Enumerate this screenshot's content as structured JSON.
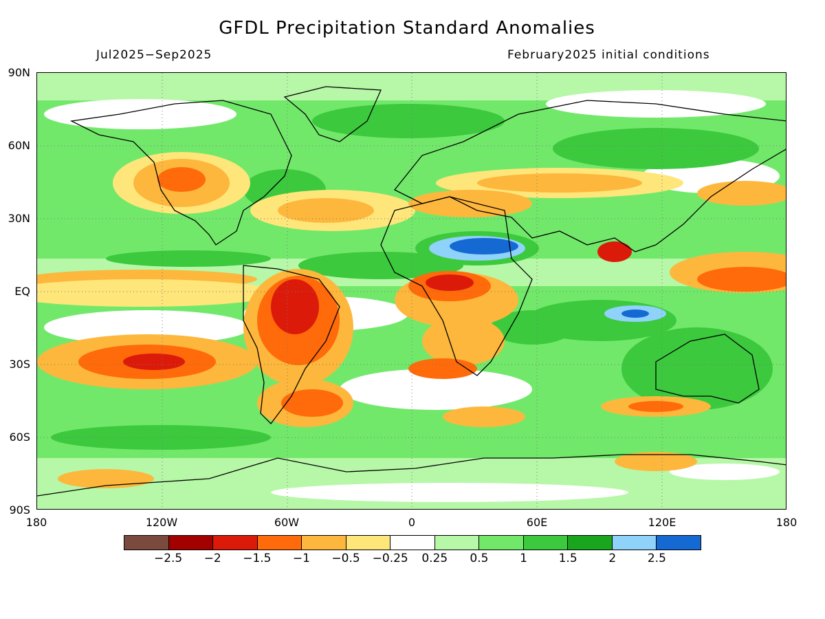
{
  "title": "GFDL Precipitation Standard Anomalies",
  "period": "Jul2025−Sep2025",
  "init_conditions": "February2025 initial conditions",
  "lat_labels": [
    "90N",
    "60N",
    "30N",
    "EQ",
    "30S",
    "60S",
    "90S"
  ],
  "lon_labels": [
    "180",
    "120W",
    "60W",
    "0",
    "60E",
    "120E",
    "180"
  ],
  "colorbar": {
    "colors": [
      "#7b4a3f",
      "#a30000",
      "#dc1a0a",
      "#ff6a0a",
      "#fdb73c",
      "#fee67a",
      "#ffffff",
      "#b7f7a8",
      "#72e86b",
      "#3cc93e",
      "#1aa51e",
      "#8fd2fa",
      "#1569d3"
    ],
    "labels": [
      "−2.5",
      "−2",
      "−1.5",
      "−1",
      "−0.5",
      "−0.25",
      "0.25",
      "0.5",
      "1",
      "1.5",
      "2",
      "2.5"
    ]
  }
}
